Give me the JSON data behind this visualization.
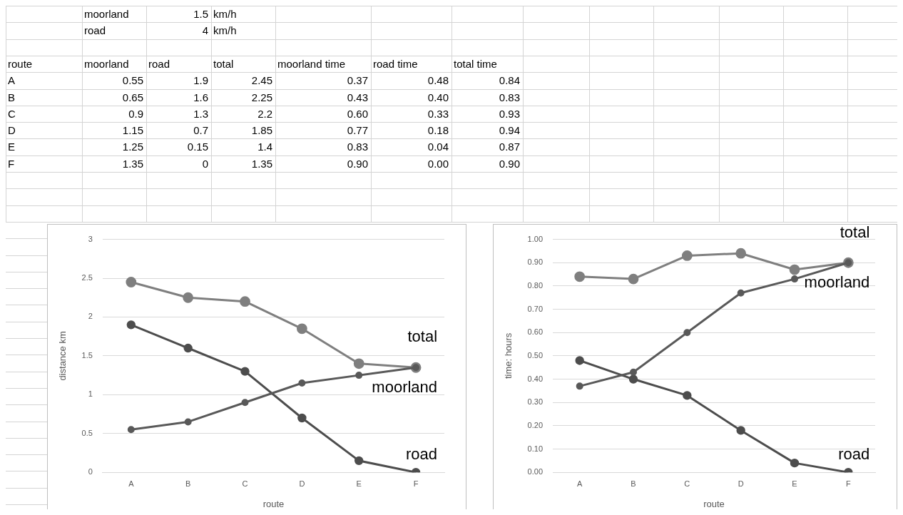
{
  "chart_data": [
    {
      "type": "other",
      "annotations": [
        "\tmoorland\t1.5\tkm/h",
        "\troad\t4\tkm/h",
        "route\tmoorland\troad\ttotal\tmoorland time\troad time\ttotal time",
        "A\t0.55\t1.9\t2.45\t0.37\t0.48\t0.84",
        "B\t0.65\t1.6\t2.25\t0.43\t0.40\t0.83",
        "C\t0.9\t1.3\t2.2\t0.60\t0.33\t0.93",
        "D\t1.15\t0.7\t1.85\t0.77\t0.18\t0.94",
        "E\t1.25\t0.15\t1.4\t0.83\t0.04\t0.87",
        "F\t1.35\t0\t1.35\t0.90\t0.00\t0.90"
      ]
    },
    {
      "type": "line",
      "xlabel": "route",
      "ylabel": "distance km",
      "categories": [
        "A",
        "B",
        "C",
        "D",
        "E",
        "F"
      ],
      "series": [
        {
          "name": "moorland",
          "color": "#595959",
          "values": [
            0.55,
            0.65,
            0.9,
            1.15,
            1.25,
            1.35
          ]
        },
        {
          "name": "road",
          "color": "#4d4d4d",
          "values": [
            1.9,
            1.6,
            1.3,
            0.7,
            0.15,
            0
          ]
        },
        {
          "name": "total",
          "color": "#7f7f7f",
          "values": [
            2.45,
            2.25,
            2.2,
            1.85,
            1.4,
            1.35
          ]
        }
      ],
      "ylim": [
        0,
        3
      ],
      "yticks": [
        0,
        0.5,
        1,
        1.5,
        2,
        2.5,
        3
      ],
      "grid": "y",
      "marker": "circle"
    },
    {
      "type": "line",
      "xlabel": "route",
      "ylabel": "time: hours",
      "categories": [
        "A",
        "B",
        "C",
        "D",
        "E",
        "F"
      ],
      "series": [
        {
          "name": "moorland",
          "color": "#595959",
          "values": [
            0.37,
            0.43,
            0.6,
            0.77,
            0.83,
            0.9
          ]
        },
        {
          "name": "road",
          "color": "#4d4d4d",
          "values": [
            0.48,
            0.4,
            0.33,
            0.18,
            0.04,
            0
          ]
        },
        {
          "name": "total",
          "color": "#7f7f7f",
          "values": [
            0.84,
            0.83,
            0.93,
            0.94,
            0.87,
            0.9
          ]
        }
      ],
      "ylim": [
        0,
        1
      ],
      "yticks": [
        {
          "value": 0,
          "label": "0.00"
        },
        {
          "value": 0.1,
          "label": "0.10"
        },
        {
          "value": 0.2,
          "label": "0.20"
        },
        {
          "value": 0.3,
          "label": "0.30"
        },
        {
          "value": 0.4,
          "label": "0.40"
        },
        {
          "value": 0.5,
          "label": "0.50"
        },
        {
          "value": 0.6,
          "label": "0.60"
        },
        {
          "value": 0.7,
          "label": "0.70"
        },
        {
          "value": 0.8,
          "label": "0.80"
        },
        {
          "value": 0.9,
          "label": "0.90"
        },
        {
          "value": 1,
          "label": "1.00"
        }
      ],
      "grid": "y",
      "marker": "circle"
    }
  ]
}
